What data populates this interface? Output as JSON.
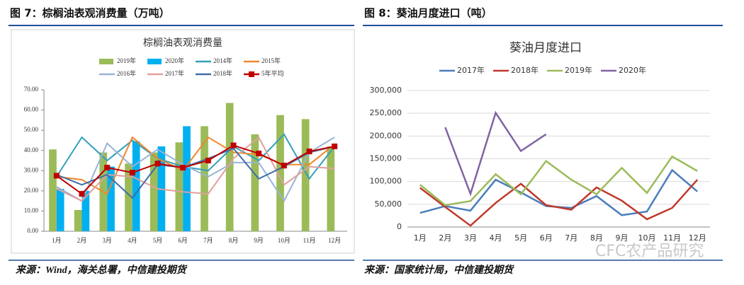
{
  "chart_data": [
    {
      "type": "bar",
      "figure_title": "图 7：棕榈油表观消费量（万吨）",
      "title": "棕榈油表观消费量",
      "source": "来源：Wind，海关总署，中信建投期货",
      "categories": [
        "1月",
        "2月",
        "3月",
        "4月",
        "5月",
        "6月",
        "7月",
        "8月",
        "9月",
        "10月",
        "11月",
        "12月"
      ],
      "ylim": [
        0,
        70
      ],
      "yticks": [
        {
          "value": 0,
          "label": "0.00"
        },
        {
          "value": 10,
          "label": "10.00"
        },
        {
          "value": 20,
          "label": "20.00"
        },
        {
          "value": 30,
          "label": "30.00"
        },
        {
          "value": 40,
          "label": "40.00"
        },
        {
          "value": 50,
          "label": "50.00"
        },
        {
          "value": 60,
          "label": "60.00"
        },
        {
          "value": 70,
          "label": "70.00"
        }
      ],
      "grid": false,
      "series": [
        {
          "name": "2019年",
          "type": "bar",
          "color": "#9bbb59",
          "values": [
            40.5,
            10.5,
            39,
            33.5,
            39,
            44,
            52,
            63.5,
            48,
            57.5,
            55.5,
            42
          ]
        },
        {
          "name": "2020年",
          "type": "bar",
          "color": "#00b0f0",
          "values": [
            21,
            20,
            32,
            44.5,
            42,
            52,
            null,
            null,
            null,
            null,
            null,
            null
          ]
        },
        {
          "name": "2014年",
          "type": "line",
          "color": "#31a0b8",
          "values": [
            27,
            46.5,
            35,
            45,
            36,
            32,
            30,
            42,
            35,
            48,
            26,
            42
          ]
        },
        {
          "name": "2015年",
          "type": "line",
          "color": "#f0862a",
          "values": [
            27,
            25.5,
            18.5,
            46.5,
            36,
            30,
            46.5,
            39,
            38,
            33,
            33,
            43
          ]
        },
        {
          "name": "2016年",
          "type": "line",
          "color": "#98b4d6",
          "values": [
            22,
            15,
            43.5,
            32,
            40.5,
            33,
            27,
            34,
            34,
            15,
            39,
            46.5
          ]
        },
        {
          "name": "2017年",
          "type": "line",
          "color": "#e0a09c",
          "values": [
            21,
            15,
            28,
            27,
            21,
            19.5,
            18.5,
            36,
            46.5,
            23,
            32,
            31
          ]
        },
        {
          "name": "2018年",
          "type": "line",
          "color": "#3f6ea8",
          "values": [
            28,
            23,
            28,
            16.5,
            33,
            31.5,
            36,
            41,
            26,
            32,
            39,
            42
          ]
        },
        {
          "name": "5年平均",
          "type": "line",
          "color": "#c00000",
          "marker": "square",
          "values": [
            27.5,
            18.5,
            31.5,
            29,
            33.5,
            31.5,
            35,
            42.5,
            38.5,
            32.5,
            39.5,
            42
          ]
        }
      ]
    },
    {
      "type": "line",
      "figure_title": "图 8：葵油月度进口（吨）",
      "title": "葵油月度进口",
      "source": "来源：国家统计局，中信建投期货",
      "categories": [
        "1月",
        "2月",
        "3月",
        "4月",
        "5月",
        "6月",
        "7月",
        "8月",
        "9月",
        "10月",
        "11月",
        "12月"
      ],
      "ylim": [
        0,
        300000
      ],
      "yticks": [
        0,
        {
          "value": 50000,
          "label": "50,000"
        },
        {
          "value": 100000,
          "label": "100,000"
        },
        {
          "value": 150000,
          "label": "150,000"
        },
        {
          "value": 200000,
          "label": "200,000"
        },
        {
          "value": 250000,
          "label": "250,000"
        },
        {
          "value": 300000,
          "label": "300,000"
        }
      ],
      "grid": true,
      "series": [
        {
          "name": "2017年",
          "type": "line",
          "color": "#4a7ebb",
          "values": [
            31000,
            46000,
            36000,
            104000,
            76000,
            46000,
            42000,
            68000,
            26000,
            34000,
            125000,
            78000
          ]
        },
        {
          "name": "2018年",
          "type": "line",
          "color": "#c0392b",
          "values": [
            86000,
            44000,
            3000,
            53000,
            95000,
            48000,
            38000,
            87000,
            58000,
            17000,
            42000,
            104000
          ]
        },
        {
          "name": "2019年",
          "type": "line",
          "color": "#9bbb59",
          "values": [
            93000,
            48000,
            57000,
            116000,
            72000,
            145000,
            104000,
            72000,
            130000,
            75000,
            155000,
            123000
          ]
        },
        {
          "name": "2020年",
          "type": "line",
          "color": "#8064a2",
          "values": [
            null,
            219000,
            73000,
            251000,
            167000,
            204000,
            null,
            null,
            null,
            null,
            null,
            null
          ]
        }
      ]
    }
  ],
  "watermark": "CFC农产品研究"
}
